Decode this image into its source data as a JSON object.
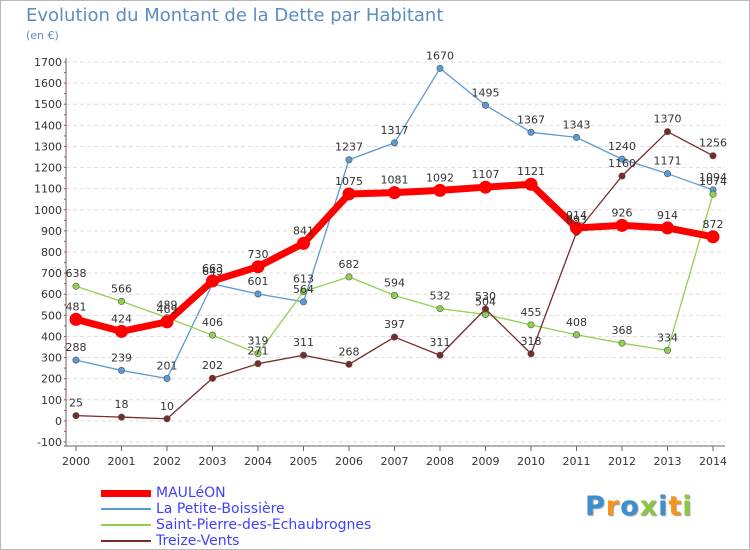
{
  "title": "Evolution du Montant de la Dette par Habitant",
  "subtitle": "(en €)",
  "logo": {
    "text": "Proxiti",
    "letter_colors": [
      "#3a8fd0",
      "#f7941d",
      "#3a8fd0",
      "#8dc63f",
      "#3a8fd0",
      "#f7941d",
      "#8dc63f"
    ]
  },
  "chart_data": {
    "type": "line",
    "title": "Evolution du Montant de la Dette par Habitant",
    "subtitle": "(en €)",
    "xlabel": "",
    "ylabel": "",
    "x": [
      "2000",
      "2001",
      "2002",
      "2003",
      "2004",
      "2005",
      "2006",
      "2007",
      "2008",
      "2009",
      "2010",
      "2011",
      "2012",
      "2013",
      "2014"
    ],
    "ylim": [
      -100,
      1700
    ],
    "ytick_step": 100,
    "grid": "horizontal dashed",
    "legend": "bottom-left",
    "series": [
      {
        "name": "MAULéON",
        "color": "#ff0000",
        "values": [
          481,
          424,
          469,
          663,
          730,
          841,
          1075,
          1081,
          1092,
          1107,
          1121,
          914,
          926,
          914,
          872
        ],
        "labels": [
          "481",
          "424",
          "469",
          "663",
          "730",
          "841",
          "1075",
          "1081",
          "1092",
          "1107",
          "1121",
          "914",
          "926",
          "914",
          "872"
        ]
      },
      {
        "name": "La Petite-Boissière",
        "color": "#5a9bd5",
        "values": [
          288,
          239,
          201,
          649,
          601,
          564,
          1237,
          1317,
          1670,
          1495,
          1367,
          1343,
          1240,
          1171,
          1094
        ],
        "labels": [
          "288",
          "239",
          "201",
          "649",
          "601",
          "564",
          "1237",
          "1317",
          "1670",
          "1495",
          "1367",
          "1343",
          "1240",
          "1171",
          "1094"
        ]
      },
      {
        "name": "Saint-Pierre-des-Echaubrognes",
        "color": "#8fd14f",
        "values": [
          638,
          566,
          489,
          406,
          319,
          613,
          682,
          594,
          532,
          504,
          455,
          408,
          368,
          334,
          1074
        ],
        "labels": [
          "638",
          "566",
          "489",
          "406",
          "319",
          "613",
          "682",
          "594",
          "532",
          "504",
          "455",
          "408",
          "368",
          "334",
          "1074"
        ]
      },
      {
        "name": "Treize-Vents",
        "color": "#7b2a2a",
        "values": [
          25,
          18,
          10,
          202,
          271,
          311,
          268,
          397,
          311,
          530,
          318,
          893,
          1160,
          1370,
          1256
        ],
        "labels": [
          "25",
          "18",
          "10",
          "202",
          "271",
          "311",
          "268",
          "397",
          "311",
          "530",
          "318",
          "893",
          "1160",
          "1370",
          "1256"
        ]
      }
    ]
  }
}
